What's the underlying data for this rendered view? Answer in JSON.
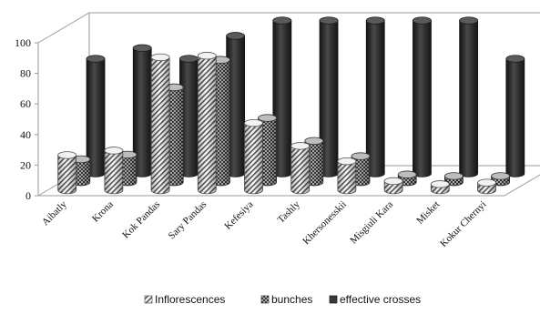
{
  "chart_data": {
    "type": "bar",
    "variant": "3d-cylinder-depth",
    "categories": [
      "Aibatly",
      "Krona",
      "Kok Pandas",
      "Sary Pandas",
      "Kefesiya",
      "Tashly",
      "Khersonesskii",
      "Misgiuli Kara",
      "Misket",
      "Kokur Chernyi"
    ],
    "series": [
      {
        "name": "Inflorescences",
        "values": [
          23,
          26,
          87,
          88,
          44,
          29,
          19,
          6,
          4,
          5
        ],
        "pattern": "diagonal-hatch",
        "color": "#ffffff"
      },
      {
        "name": "bunches",
        "values": [
          15,
          18,
          62,
          80,
          42,
          27,
          17,
          5,
          4,
          4
        ],
        "pattern": "crosshatch",
        "color": "#777777"
      },
      {
        "name": "effective crosses",
        "values": [
          75,
          82,
          75,
          90,
          100,
          100,
          100,
          100,
          100,
          75
        ],
        "pattern": "solid",
        "color": "#3a3a3a"
      }
    ],
    "yticks": [
      0,
      20,
      40,
      60,
      80,
      100
    ],
    "ylim": [
      0,
      100
    ],
    "grid": false,
    "legend_position": "bottom"
  }
}
